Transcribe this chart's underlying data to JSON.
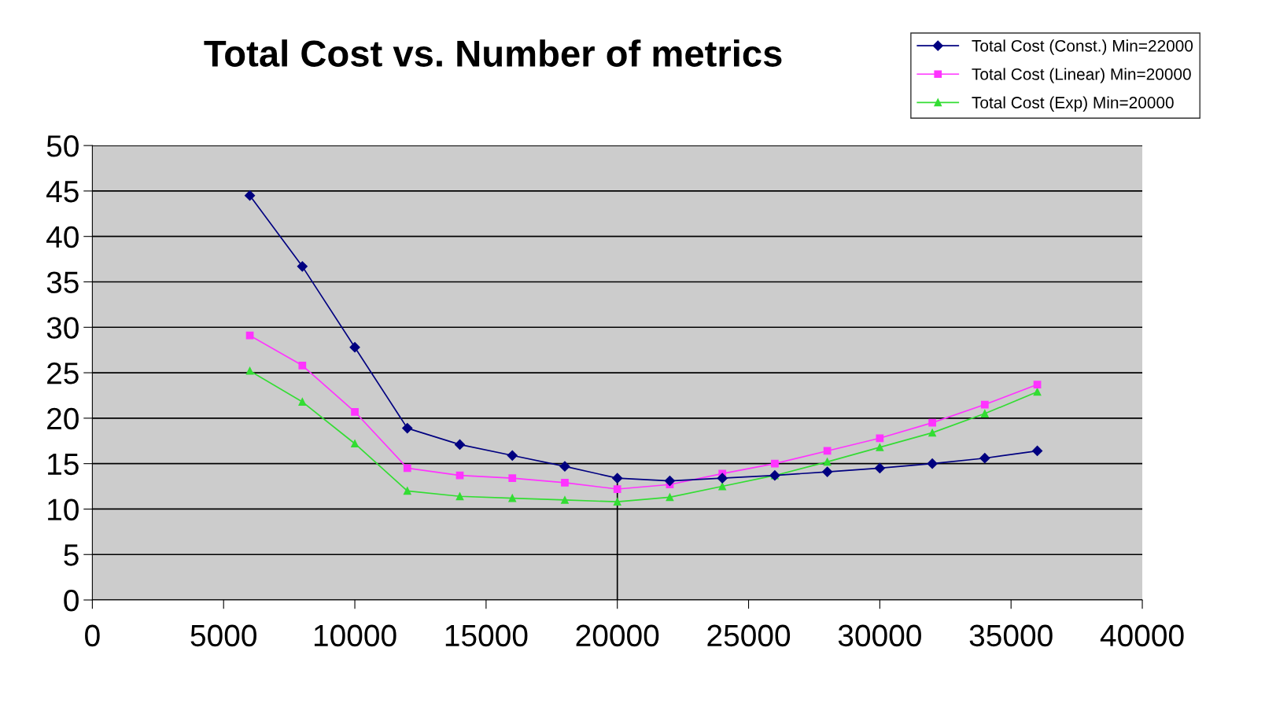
{
  "chart_data": {
    "type": "line",
    "title": "Total Cost vs. Number of metrics",
    "x": [
      6000,
      8000,
      10000,
      12000,
      14000,
      16000,
      18000,
      20000,
      22000,
      24000,
      26000,
      28000,
      30000,
      32000,
      34000,
      36000
    ],
    "series": [
      {
        "name": "Total Cost (Const.) Min=22000",
        "color": "#000080",
        "marker": "diamond",
        "values": [
          44.5,
          36.7,
          27.8,
          18.9,
          17.1,
          15.9,
          14.7,
          13.4,
          13.1,
          13.4,
          13.7,
          14.1,
          14.5,
          15.0,
          15.6,
          16.4
        ]
      },
      {
        "name": "Total Cost (Linear) Min=20000",
        "color": "#ff33ff",
        "marker": "square",
        "values": [
          29.1,
          25.8,
          20.7,
          14.5,
          13.7,
          13.4,
          12.9,
          12.2,
          12.7,
          13.9,
          15.0,
          16.4,
          17.8,
          19.5,
          21.5,
          23.7
        ]
      },
      {
        "name": "Total Cost (Exp) Min=20000",
        "color": "#33dd33",
        "marker": "triangle",
        "values": [
          25.2,
          21.8,
          17.2,
          12.0,
          11.4,
          11.2,
          11.0,
          10.8,
          11.3,
          12.5,
          13.7,
          15.2,
          16.8,
          18.4,
          20.5,
          22.9
        ]
      }
    ],
    "xlim": [
      0,
      40000
    ],
    "xticks": [
      0,
      5000,
      10000,
      15000,
      20000,
      25000,
      30000,
      35000,
      40000
    ],
    "ylim": [
      0,
      50
    ],
    "yticks": [
      0,
      5,
      10,
      15,
      20,
      25,
      30,
      35,
      40,
      45,
      50
    ],
    "ref_lines": [
      {
        "axis": "x",
        "value": 20000,
        "color": "#000000"
      }
    ],
    "grid": "y",
    "legend": "top right",
    "line_style": "solid"
  }
}
